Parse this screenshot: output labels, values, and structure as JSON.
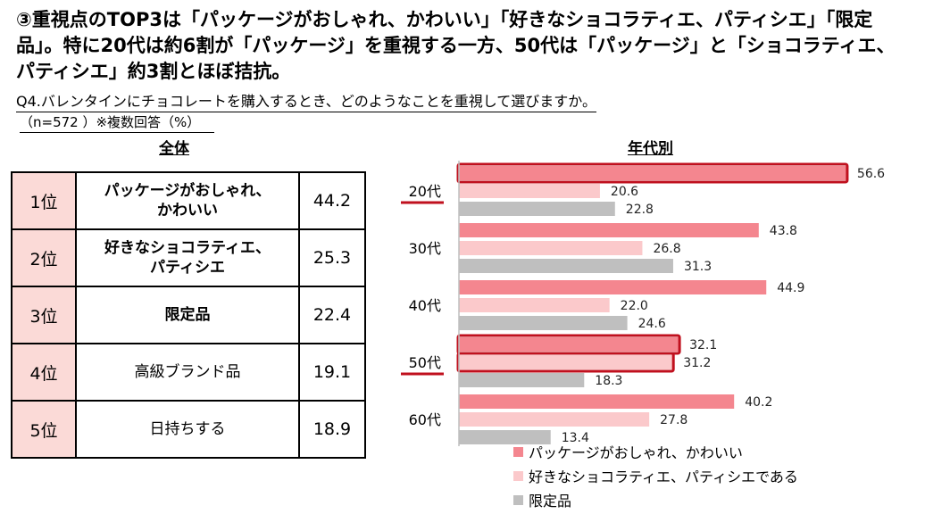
{
  "headline": "③重視点のTOP3は「パッケージがおしゃれ、かわいい」「好きなショコラティエ、パティシエ」「限定品」。特に20代は約6割が「パッケージ」を重視する一方、50代は「パッケージ」と「ショコラティエ、パティシエ」約3割とほぼ拮抗。",
  "question": "Q4.バレンタインにチョコレートを購入するとき、どのようなことを重視して選びますか。",
  "sample_note": "（n=572 ）※複数回答（%）",
  "left_title": "全体",
  "right_title": "年代別",
  "ranking": [
    {
      "rank": "1位",
      "item": "パッケージがおしゃれ、かわいい",
      "value": "44.2"
    },
    {
      "rank": "2位",
      "item": "好きなショコラティエ、パティシエ",
      "value": "25.3"
    },
    {
      "rank": "3位",
      "item": "限定品",
      "value": "22.4"
    },
    {
      "rank": "4位",
      "item": "高級ブランド品",
      "value": "19.1"
    },
    {
      "rank": "5位",
      "item": "日持ちする",
      "value": "18.9"
    }
  ],
  "colors": {
    "series1": "#f4868f",
    "series2": "#fbc9cb",
    "series3": "#bfbfbf",
    "highlight": "#c0101e",
    "rank_bg": "#fbdad7"
  },
  "chart_data": {
    "type": "bar",
    "orientation": "horizontal",
    "title": "年代別",
    "unit": "%",
    "categories": [
      "20代",
      "30代",
      "40代",
      "50代",
      "60代"
    ],
    "series": [
      {
        "name": "パッケージがおしゃれ、かわいい",
        "values": [
          56.6,
          43.8,
          44.9,
          32.1,
          40.2
        ]
      },
      {
        "name": "好きなショコラティエ、パティシエである",
        "values": [
          20.6,
          26.8,
          22.0,
          31.2,
          27.8
        ]
      },
      {
        "name": "限定品",
        "values": [
          22.8,
          31.3,
          24.6,
          18.3,
          13.4
        ]
      }
    ],
    "highlighted_categories": [
      "20代",
      "50代"
    ],
    "highlighted_bars": [
      [
        0,
        0
      ],
      [
        3,
        0
      ],
      [
        3,
        1
      ]
    ],
    "xlim": [
      0,
      60
    ],
    "legend": "bottom"
  }
}
